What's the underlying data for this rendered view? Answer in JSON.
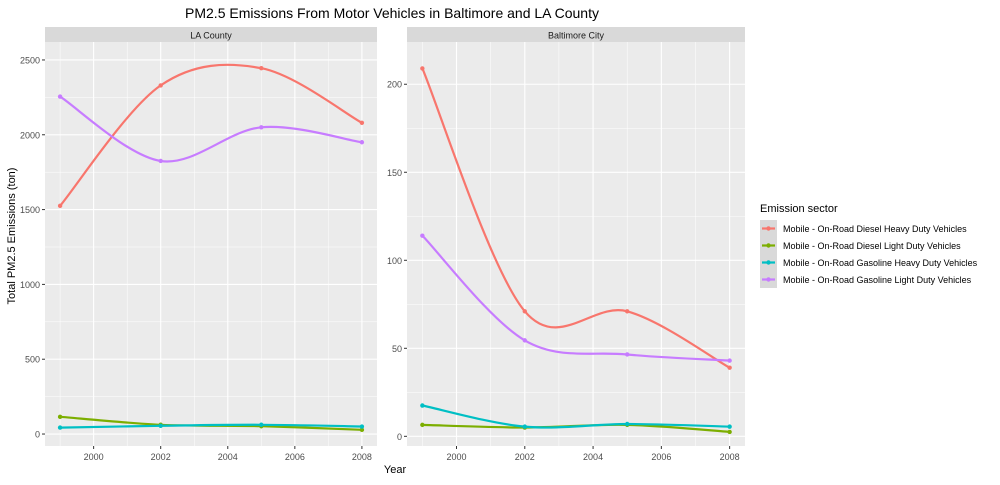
{
  "chart_data": {
    "type": "line",
    "title": "PM2.5 Emissions From Motor Vehicles in Baltimore and LA County",
    "xlabel": "Year",
    "ylabel": "Total PM2.5 Emissions (ton)",
    "grid": true,
    "x": [
      1999,
      2002,
      2005,
      2008
    ],
    "legend": {
      "title": "Emission sector",
      "position": "right",
      "entries": [
        {
          "name": "Mobile - On-Road Diesel Heavy Duty Vehicles",
          "color": "#F8766D"
        },
        {
          "name": "Mobile - On-Road Diesel Light Duty Vehicles",
          "color": "#7CAE00"
        },
        {
          "name": "Mobile - On-Road Gasoline Heavy Duty Vehicles",
          "color": "#00BFC4"
        },
        {
          "name": "Mobile - On-Road Gasoline Light Duty Vehicles",
          "color": "#C77CFF"
        }
      ]
    },
    "panels": [
      {
        "strip": "LA County",
        "ylim": [
          -80,
          2620
        ],
        "xlim": [
          1998.55,
          2008.45
        ],
        "yticks": [
          0,
          500,
          1000,
          1500,
          2000,
          2500
        ],
        "xticks": [
          2000,
          2002,
          2004,
          2006,
          2008
        ],
        "series": [
          {
            "name": "Mobile - On-Road Diesel Heavy Duty Vehicles",
            "values": [
              1525,
              2330,
              2445,
              2080
            ]
          },
          {
            "name": "Mobile - On-Road Diesel Light Duty Vehicles",
            "values": [
              115,
              62,
              52,
              28
            ]
          },
          {
            "name": "Mobile - On-Road Gasoline Heavy Duty Vehicles",
            "values": [
              43,
              55,
              62,
              50
            ]
          },
          {
            "name": "Mobile - On-Road Gasoline Light Duty Vehicles",
            "values": [
              2255,
              1825,
              2050,
              1950
            ]
          }
        ]
      },
      {
        "strip": "Baltimore City",
        "ylim": [
          -5.5,
          224
        ],
        "xlim": [
          1998.55,
          2008.45
        ],
        "yticks": [
          0,
          50,
          100,
          150,
          200
        ],
        "xticks": [
          2000,
          2002,
          2004,
          2006,
          2008
        ],
        "series": [
          {
            "name": "Mobile - On-Road Diesel Heavy Duty Vehicles",
            "values": [
              209,
              71,
              71,
              39
            ]
          },
          {
            "name": "Mobile - On-Road Diesel Light Duty Vehicles",
            "values": [
              6.5,
              5,
              6.5,
              2.5
            ]
          },
          {
            "name": "Mobile - On-Road Gasoline Heavy Duty Vehicles",
            "values": [
              17.5,
              5.5,
              7,
              5.5
            ]
          },
          {
            "name": "Mobile - On-Road Gasoline Light Duty Vehicles",
            "values": [
              114,
              54.5,
              46.5,
              43
            ]
          }
        ]
      }
    ]
  }
}
